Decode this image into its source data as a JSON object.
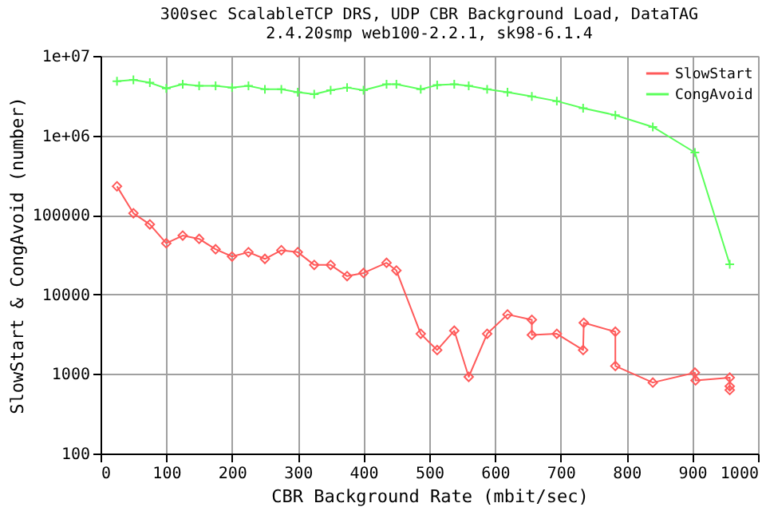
{
  "chart_data": {
    "type": "line",
    "title": [
      "300sec ScalableTCP DRS, UDP CBR Background Load, DataTAG",
      "2.4.20smp web100-2.2.1, sk98-6.1.4"
    ],
    "xlabel": "CBR Background Rate (mbit/sec)",
    "ylabel": "SlowStart & CongAvoid (number)",
    "xlim": [
      0,
      1000
    ],
    "xticks": [
      0,
      100,
      200,
      300,
      400,
      500,
      600,
      700,
      800,
      900,
      1000
    ],
    "ylim": [
      100,
      10000000
    ],
    "yticks": [
      100,
      1000,
      10000,
      100000,
      {
        "value": 1000000,
        "label": "1e+06"
      },
      {
        "value": 10000000,
        "label": "1e+07"
      }
    ],
    "log": "y",
    "grid": true,
    "legend": "top right",
    "line_style": "solid",
    "series": [
      {
        "name": "SlowStart",
        "color": "#ff5a5a",
        "marker": "diamond",
        "x": [
          25,
          50,
          75,
          100,
          125,
          150,
          175,
          200,
          225,
          250,
          275,
          300,
          325,
          350,
          375,
          400,
          435,
          450,
          487,
          512,
          538,
          560,
          588,
          619,
          656,
          656,
          694,
          734,
          735,
          783,
          783,
          840,
          904,
          905,
          957,
          957,
          957
        ],
        "values": [
          229000,
          105000,
          76000,
          44000,
          55000,
          50000,
          37000,
          30000,
          34000,
          28000,
          36000,
          34000,
          23500,
          23500,
          17000,
          18600,
          25000,
          20000,
          3200,
          2000,
          3500,
          920,
          3200,
          5600,
          4800,
          3100,
          3200,
          2000,
          4400,
          3400,
          1260,
          780,
          1040,
          830,
          900,
          700,
          630
        ]
      },
      {
        "name": "CongAvoid",
        "color": "#5aff5a",
        "marker": "cross",
        "x": [
          25,
          50,
          75,
          100,
          125,
          150,
          175,
          200,
          225,
          250,
          275,
          300,
          325,
          350,
          375,
          400,
          435,
          450,
          487,
          512,
          538,
          560,
          588,
          619,
          656,
          694,
          734,
          783,
          840,
          904,
          957
        ],
        "values": [
          4800000,
          5000000,
          4600000,
          3900000,
          4400000,
          4200000,
          4200000,
          4000000,
          4200000,
          3800000,
          3800000,
          3500000,
          3300000,
          3700000,
          4000000,
          3700000,
          4400000,
          4400000,
          3800000,
          4300000,
          4400000,
          4200000,
          3800000,
          3500000,
          3100000,
          2700000,
          2200000,
          1800000,
          1280000,
          610000,
          24000
        ]
      }
    ]
  }
}
